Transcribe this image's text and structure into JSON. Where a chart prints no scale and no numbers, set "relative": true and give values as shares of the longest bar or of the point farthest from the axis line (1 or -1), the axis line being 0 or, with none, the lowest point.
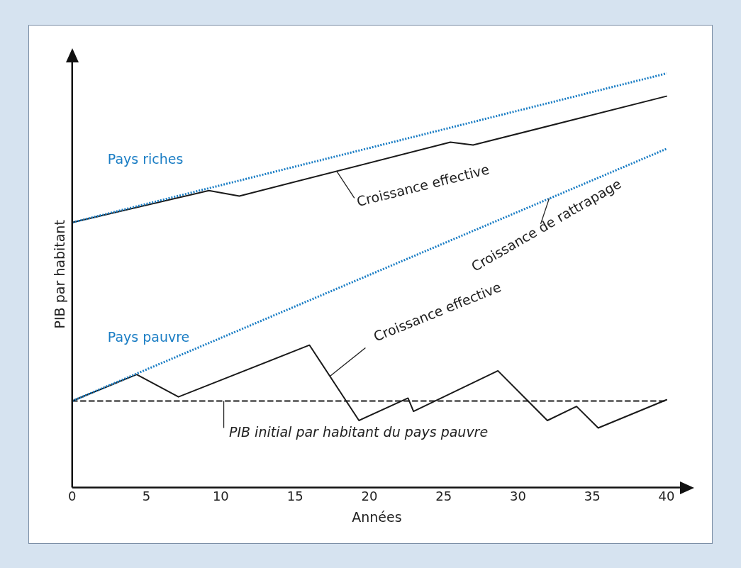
{
  "chart_data": {
    "type": "line",
    "relative": true,
    "xlabel": "Années",
    "ylabel": "PIB par habitant",
    "marker": "none",
    "xlim": [
      0,
      41
    ],
    "xticks": [
      0,
      5,
      10,
      15,
      20,
      25,
      30,
      35,
      40
    ],
    "series": [
      {
        "name": "Pays riches",
        "color": "#1a7dc4",
        "line_style": "dotted",
        "x": [
          0,
          40
        ],
        "values": [
          0.64,
          1.0
        ]
      },
      {
        "color": "#1a1a1a",
        "line_style": "solid",
        "x": [
          0,
          9.2,
          11.25,
          25.45,
          26.98,
          40
        ],
        "values": [
          0.64,
          0.717,
          0.704,
          0.834,
          0.827,
          0.945
        ]
      },
      {
        "name": "Pays pauvre",
        "color": "#1a7dc4",
        "line_style": "dotted",
        "x": [
          0,
          40
        ],
        "values": [
          0.209,
          0.818
        ]
      },
      {
        "color": "#1a1a1a",
        "line_style": "solid",
        "x": [
          0,
          4.34,
          7.15,
          15.97,
          19.3,
          22.6,
          22.97,
          28.65,
          31.98,
          33.94,
          35.4,
          40
        ],
        "values": [
          0.209,
          0.273,
          0.219,
          0.344,
          0.162,
          0.216,
          0.184,
          0.282,
          0.162,
          0.196,
          0.144,
          0.212
        ]
      },
      {
        "color": "#1a1a1a",
        "line_style": "dashed",
        "x": [
          0,
          40
        ],
        "values": [
          0.209,
          0.209
        ]
      }
    ],
    "annotations": [
      {
        "text": "Croissance effective",
        "x": 17.8,
        "y": 0.764
      },
      {
        "text": "Croissance de rattrapage",
        "x": 32.1,
        "y": 0.698
      },
      {
        "text": "Croissance effective",
        "x": 17.35,
        "y": 0.269
      },
      {
        "text": "PIB initial par habitant du pays pauvre",
        "x": 10.2,
        "y": 0.209
      }
    ]
  }
}
